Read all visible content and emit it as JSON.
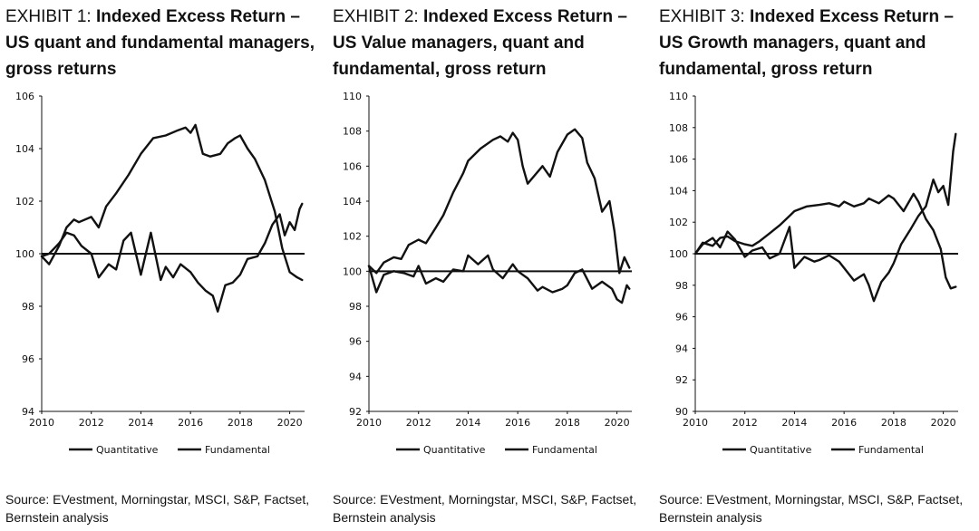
{
  "charts": [
    {
      "exhibit": "EXHIBIT 1:",
      "title": "Indexed Excess Return – US quant and fundamental managers, gross returns",
      "source": "Source: EVestment, Morningstar, MSCI, S&P, Factset, Bernstein analysis"
    },
    {
      "exhibit": "EXHIBIT 2:",
      "title": "Indexed Excess Return – US Value managers, quant and fundamental, gross return",
      "source": "Source: EVestment, Morningstar, MSCI, S&P, Factset, Bernstein analysis"
    },
    {
      "exhibit": "EXHIBIT 3:",
      "title": "Indexed Excess Return – US Growth managers, quant and fundamental, gross return",
      "source": "Source: EVestment, Morningstar, MSCI, S&P, Factset, Bernstein analysis"
    }
  ],
  "chart_data": [
    {
      "type": "line",
      "title": "Indexed Excess Return – US quant and fundamental managers, gross returns",
      "xlim": [
        2010,
        2020.6
      ],
      "ylim": [
        94,
        106
      ],
      "xticks": [
        "2010",
        "2012",
        "2014",
        "2016",
        "2018",
        "2020"
      ],
      "yticks": [
        "94",
        "96",
        "98",
        "100",
        "102",
        "104",
        "106"
      ],
      "reference_line": 100,
      "legend": "bottom",
      "series": [
        {
          "name": "Quantitative",
          "x": [
            2010,
            2010.3,
            2010.7,
            2011,
            2011.3,
            2011.5,
            2012,
            2012.3,
            2012.6,
            2013,
            2013.5,
            2014,
            2014.5,
            2015,
            2015.5,
            2015.8,
            2016,
            2016.2,
            2016.5,
            2016.8,
            2017.2,
            2017.5,
            2017.8,
            2018,
            2018.3,
            2018.6,
            2019,
            2019.4,
            2019.7,
            2020,
            2020.3,
            2020.5
          ],
          "y": [
            99.9,
            99.6,
            100.3,
            101.0,
            101.3,
            101.2,
            101.4,
            101.0,
            101.8,
            102.3,
            103.0,
            103.8,
            104.4,
            104.5,
            104.7,
            104.8,
            104.6,
            104.9,
            103.8,
            103.7,
            103.8,
            104.2,
            104.4,
            104.5,
            104.0,
            103.6,
            102.8,
            101.6,
            100.2,
            99.3,
            99.1,
            99.0
          ]
        },
        {
          "name": "Fundamental",
          "x": [
            2010,
            2010.3,
            2010.7,
            2011,
            2011.3,
            2011.6,
            2012,
            2012.3,
            2012.7,
            2013,
            2013.3,
            2013.6,
            2014,
            2014.4,
            2014.8,
            2015,
            2015.3,
            2015.6,
            2016,
            2016.3,
            2016.6,
            2016.9,
            2017.1,
            2017.4,
            2017.7,
            2018,
            2018.3,
            2018.7,
            2019,
            2019.3,
            2019.6,
            2019.8,
            2020,
            2020.2,
            2020.4,
            2020.5
          ],
          "y": [
            99.9,
            100.0,
            100.4,
            100.8,
            100.7,
            100.3,
            100.0,
            99.1,
            99.6,
            99.4,
            100.5,
            100.8,
            99.2,
            100.8,
            99.0,
            99.5,
            99.1,
            99.6,
            99.3,
            98.9,
            98.6,
            98.4,
            97.8,
            98.8,
            98.9,
            99.2,
            99.8,
            99.9,
            100.4,
            101.1,
            101.5,
            100.7,
            101.2,
            100.9,
            101.7,
            101.9
          ]
        }
      ]
    },
    {
      "type": "line",
      "title": "Indexed Excess Return – US Value managers, quant and fundamental, gross return",
      "xlim": [
        2010,
        2020.6
      ],
      "ylim": [
        92,
        110
      ],
      "xticks": [
        "2010",
        "2012",
        "2014",
        "2016",
        "2018",
        "2020"
      ],
      "yticks": [
        "92",
        "94",
        "96",
        "98",
        "100",
        "102",
        "104",
        "106",
        "108",
        "110"
      ],
      "reference_line": 100,
      "legend": "bottom",
      "series": [
        {
          "name": "Quantitative",
          "x": [
            2010,
            2010.3,
            2010.6,
            2011,
            2011.3,
            2011.6,
            2012,
            2012.3,
            2012.7,
            2013,
            2013.4,
            2013.8,
            2014,
            2014.5,
            2015,
            2015.3,
            2015.6,
            2015.8,
            2016,
            2016.2,
            2016.4,
            2016.7,
            2017,
            2017.3,
            2017.6,
            2018,
            2018.3,
            2018.6,
            2018.8,
            2019.1,
            2019.4,
            2019.7,
            2019.9,
            2020.1,
            2020.3,
            2020.5
          ],
          "y": [
            100.3,
            99.9,
            100.5,
            100.8,
            100.7,
            101.5,
            101.8,
            101.6,
            102.5,
            103.2,
            104.5,
            105.6,
            106.3,
            107.0,
            107.5,
            107.7,
            107.4,
            107.9,
            107.5,
            106.0,
            105.0,
            105.5,
            106.0,
            105.4,
            106.8,
            107.8,
            108.1,
            107.6,
            106.2,
            105.3,
            103.4,
            104.0,
            102.3,
            99.9,
            100.8,
            100.2
          ]
        },
        {
          "name": "Fundamental",
          "x": [
            2010,
            2010.3,
            2010.6,
            2011,
            2011.4,
            2011.8,
            2012,
            2012.3,
            2012.7,
            2013,
            2013.4,
            2013.8,
            2014,
            2014.4,
            2014.8,
            2015,
            2015.4,
            2015.8,
            2016,
            2016.4,
            2016.8,
            2017,
            2017.4,
            2017.8,
            2018,
            2018.3,
            2018.6,
            2019,
            2019.4,
            2019.8,
            2020,
            2020.2,
            2020.4,
            2020.5
          ],
          "y": [
            100.3,
            98.8,
            99.8,
            100.0,
            99.9,
            99.7,
            100.3,
            99.3,
            99.6,
            99.4,
            100.1,
            100.0,
            100.9,
            100.4,
            100.9,
            100.1,
            99.6,
            100.4,
            100.0,
            99.6,
            98.9,
            99.1,
            98.8,
            99.0,
            99.2,
            99.9,
            100.1,
            99.0,
            99.4,
            99.0,
            98.4,
            98.2,
            99.2,
            99.0
          ]
        }
      ]
    },
    {
      "type": "line",
      "title": "Indexed Excess Return – US Growth managers, quant and fundamental, gross return",
      "xlim": [
        2010,
        2020.6
      ],
      "ylim": [
        90,
        110
      ],
      "xticks": [
        "2010",
        "2012",
        "2014",
        "2016",
        "2018",
        "2020"
      ],
      "yticks": [
        "90",
        "92",
        "94",
        "96",
        "98",
        "100",
        "102",
        "104",
        "106",
        "108",
        "110"
      ],
      "reference_line": 100,
      "legend": "bottom",
      "series": [
        {
          "name": "Quantitative",
          "x": [
            2010,
            2010.3,
            2010.7,
            2011,
            2011.3,
            2011.6,
            2012,
            2012.3,
            2012.6,
            2013,
            2013.4,
            2013.8,
            2014,
            2014.5,
            2015,
            2015.4,
            2015.8,
            2016,
            2016.4,
            2016.8,
            2017,
            2017.4,
            2017.8,
            2018,
            2018.4,
            2018.8,
            2019,
            2019.3,
            2019.6,
            2019.9,
            2020.1,
            2020.3,
            2020.5
          ],
          "y": [
            100.0,
            100.7,
            100.5,
            101.0,
            101.1,
            100.8,
            100.6,
            100.5,
            100.8,
            101.3,
            101.8,
            102.4,
            102.7,
            103.0,
            103.1,
            103.2,
            103.0,
            103.3,
            103.0,
            103.2,
            103.5,
            103.2,
            103.7,
            103.5,
            102.7,
            103.8,
            103.3,
            102.2,
            101.5,
            100.3,
            98.5,
            97.8,
            97.9
          ]
        },
        {
          "name": "Fundamental",
          "x": [
            2010,
            2010.3,
            2010.7,
            2011,
            2011.3,
            2011.6,
            2012,
            2012.3,
            2012.7,
            2013,
            2013.4,
            2013.8,
            2014,
            2014.4,
            2014.8,
            2015,
            2015.4,
            2015.8,
            2016,
            2016.4,
            2016.8,
            2017,
            2017.2,
            2017.5,
            2017.8,
            2018,
            2018.3,
            2018.7,
            2019,
            2019.3,
            2019.6,
            2019.8,
            2020,
            2020.2,
            2020.4,
            2020.5
          ],
          "y": [
            100.0,
            100.6,
            101.0,
            100.4,
            101.4,
            100.9,
            99.8,
            100.2,
            100.4,
            99.7,
            100.0,
            101.7,
            99.1,
            99.8,
            99.5,
            99.6,
            99.9,
            99.5,
            99.1,
            98.3,
            98.7,
            98.0,
            97.0,
            98.2,
            98.8,
            99.4,
            100.6,
            101.6,
            102.4,
            103.0,
            104.7,
            103.9,
            104.3,
            103.1,
            106.5,
            107.6
          ]
        }
      ]
    }
  ]
}
